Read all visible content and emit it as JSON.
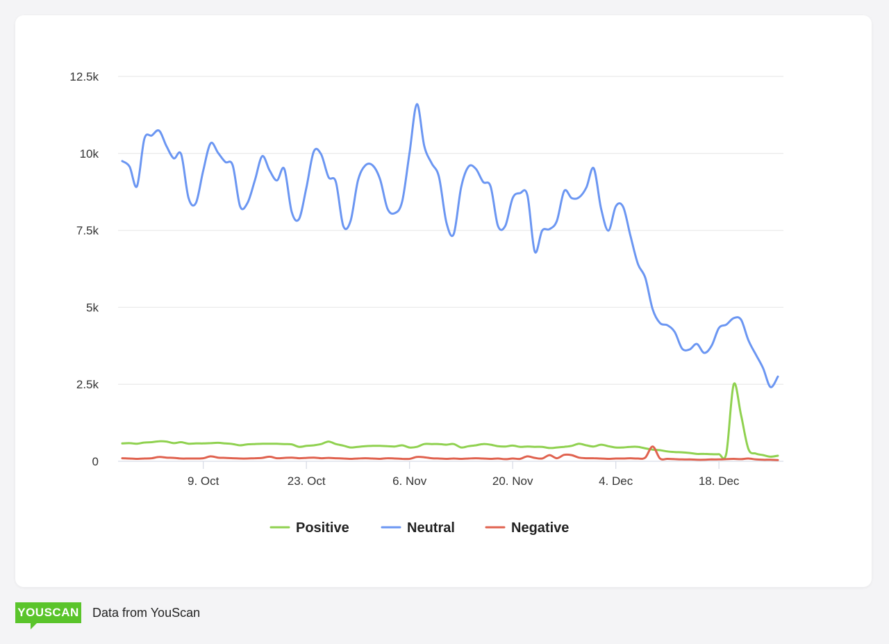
{
  "chart_data": {
    "type": "line",
    "title": "",
    "xlabel": "",
    "ylabel": "",
    "ylim": [
      0,
      12500
    ],
    "yticks": [
      0,
      2500,
      5000,
      7500,
      10000,
      12500
    ],
    "ytick_labels": [
      "0",
      "2.5k",
      "5k",
      "7.5k",
      "10k",
      "12.5k"
    ],
    "xtick_dates": [
      "Oct 9",
      "Oct 23",
      "Nov 6",
      "Nov 20",
      "Dec 4",
      "Dec 18"
    ],
    "xtick_labels": [
      "9. Oct",
      "23. Oct",
      "6. Nov",
      "20. Nov",
      "4. Dec",
      "18. Dec"
    ],
    "grid": true,
    "legend_position": "bottom",
    "x": [
      "Sep 28",
      "Sep 29",
      "Sep 30",
      "Oct 1",
      "Oct 2",
      "Oct 3",
      "Oct 4",
      "Oct 5",
      "Oct 6",
      "Oct 7",
      "Oct 8",
      "Oct 9",
      "Oct 10",
      "Oct 11",
      "Oct 12",
      "Oct 13",
      "Oct 14",
      "Oct 15",
      "Oct 16",
      "Oct 17",
      "Oct 18",
      "Oct 19",
      "Oct 20",
      "Oct 21",
      "Oct 22",
      "Oct 23",
      "Oct 24",
      "Oct 25",
      "Oct 26",
      "Oct 27",
      "Oct 28",
      "Oct 29",
      "Oct 30",
      "Oct 31",
      "Nov 1",
      "Nov 2",
      "Nov 3",
      "Nov 4",
      "Nov 5",
      "Nov 6",
      "Nov 7",
      "Nov 8",
      "Nov 9",
      "Nov 10",
      "Nov 11",
      "Nov 12",
      "Nov 13",
      "Nov 14",
      "Nov 15",
      "Nov 16",
      "Nov 17",
      "Nov 18",
      "Nov 19",
      "Nov 20",
      "Nov 21",
      "Nov 22",
      "Nov 23",
      "Nov 24",
      "Nov 25",
      "Nov 26",
      "Nov 27",
      "Nov 28",
      "Nov 29",
      "Nov 30",
      "Dec 1",
      "Dec 2",
      "Dec 3",
      "Dec 4",
      "Dec 5",
      "Dec 6",
      "Dec 7",
      "Dec 8",
      "Dec 9",
      "Dec 10",
      "Dec 11",
      "Dec 12",
      "Dec 13",
      "Dec 14",
      "Dec 15",
      "Dec 16",
      "Dec 17",
      "Dec 18",
      "Dec 19",
      "Dec 20",
      "Dec 21",
      "Dec 22",
      "Dec 23",
      "Dec 24",
      "Dec 25",
      "Dec 26"
    ],
    "series": [
      {
        "name": "Positive",
        "color": "#8fd14f",
        "values": [
          580,
          590,
          570,
          610,
          620,
          650,
          640,
          590,
          620,
          570,
          580,
          580,
          590,
          600,
          580,
          560,
          520,
          550,
          560,
          570,
          570,
          570,
          560,
          550,
          470,
          500,
          520,
          560,
          640,
          560,
          510,
          450,
          470,
          490,
          500,
          500,
          490,
          480,
          520,
          450,
          470,
          560,
          560,
          560,
          540,
          560,
          450,
          490,
          520,
          560,
          540,
          490,
          480,
          510,
          470,
          480,
          470,
          470,
          430,
          450,
          470,
          500,
          570,
          520,
          480,
          540,
          490,
          450,
          450,
          470,
          470,
          420,
          380,
          360,
          320,
          300,
          290,
          270,
          240,
          240,
          230,
          230,
          260,
          2500,
          1500,
          400,
          250,
          200,
          150,
          180
        ]
      },
      {
        "name": "Neutral",
        "color": "#6b96f2",
        "values": [
          9750,
          9570,
          8930,
          10470,
          10580,
          10740,
          10240,
          9840,
          9970,
          8550,
          8390,
          9450,
          10330,
          10020,
          9720,
          9610,
          8280,
          8390,
          9120,
          9910,
          9450,
          9120,
          9500,
          8100,
          7870,
          8890,
          10060,
          9970,
          9230,
          9070,
          7650,
          7810,
          9120,
          9610,
          9610,
          9160,
          8210,
          8060,
          8440,
          10020,
          11600,
          10240,
          9680,
          9230,
          7760,
          7380,
          8890,
          9570,
          9500,
          9070,
          8930,
          7650,
          7650,
          8550,
          8710,
          8640,
          6810,
          7490,
          7540,
          7810,
          8780,
          8550,
          8570,
          8890,
          9520,
          8210,
          7490,
          8280,
          8260,
          7310,
          6410,
          5960,
          4940,
          4490,
          4420,
          4200,
          3660,
          3630,
          3810,
          3520,
          3750,
          4330,
          4440,
          4650,
          4600,
          3930,
          3470,
          3020,
          2410,
          2750
        ]
      },
      {
        "name": "Negative",
        "color": "#e0624f",
        "values": [
          100,
          90,
          80,
          90,
          100,
          140,
          120,
          110,
          90,
          90,
          90,
          100,
          160,
          120,
          110,
          100,
          90,
          90,
          100,
          110,
          150,
          100,
          110,
          120,
          100,
          110,
          120,
          100,
          110,
          100,
          90,
          80,
          90,
          100,
          90,
          80,
          100,
          90,
          80,
          80,
          140,
          130,
          100,
          90,
          80,
          90,
          80,
          90,
          100,
          90,
          80,
          90,
          70,
          90,
          80,
          160,
          110,
          90,
          200,
          100,
          210,
          200,
          120,
          100,
          100,
          90,
          80,
          90,
          90,
          100,
          90,
          120,
          480,
          90,
          80,
          70,
          60,
          60,
          50,
          50,
          60,
          60,
          70,
          80,
          70,
          90,
          60,
          50,
          50,
          40
        ]
      }
    ]
  },
  "footer": {
    "logo": "YOUSCAN",
    "text": "Data from YouScan"
  }
}
